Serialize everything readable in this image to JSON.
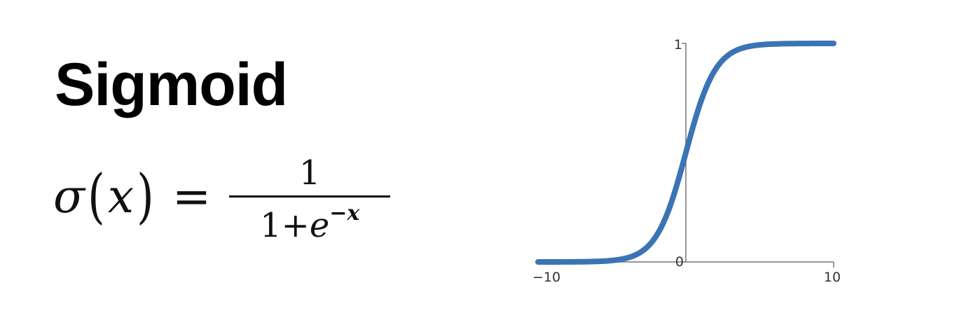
{
  "slide": {
    "title": "Sigmoid",
    "formula": {
      "lhs_func": "σ",
      "lhs_var": "x",
      "equals": "=",
      "numerator": "1",
      "denominator_base": "1+",
      "denominator_e": "e",
      "denominator_exp": "−x"
    }
  },
  "chart_data": {
    "type": "line",
    "title": "",
    "xlabel": "",
    "ylabel": "",
    "xlim": [
      -10,
      10
    ],
    "ylim": [
      0,
      1
    ],
    "x_tick_labels": [
      "−10",
      "10"
    ],
    "y_tick_labels": [
      "0",
      "1"
    ],
    "grid": false,
    "series": [
      {
        "color": "#3b74b4",
        "x": [
          -10,
          -9,
          -8,
          -7,
          -6,
          -5,
          -4,
          -3,
          -2,
          -1,
          0,
          1,
          2,
          3,
          4,
          5,
          6,
          7,
          8,
          9,
          10
        ],
        "y": [
          0.0,
          0.0001,
          0.0003,
          0.0009,
          0.0025,
          0.0067,
          0.018,
          0.047,
          0.119,
          0.269,
          0.5,
          0.731,
          0.881,
          0.953,
          0.982,
          0.993,
          0.9975,
          0.9991,
          0.9997,
          0.9999,
          1.0
        ]
      }
    ]
  }
}
